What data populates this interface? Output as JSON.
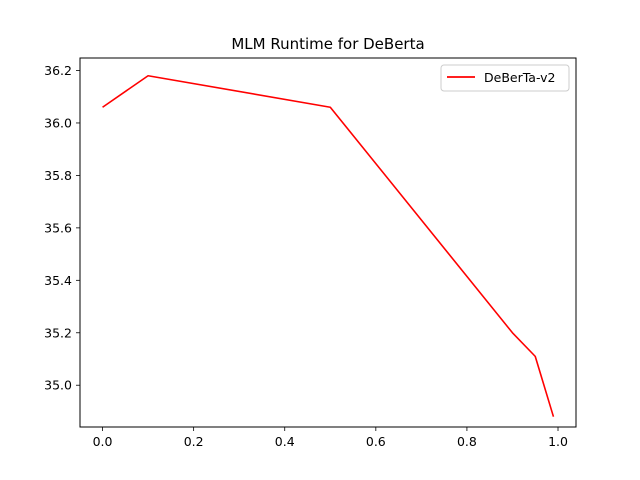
{
  "chart_data": {
    "type": "line",
    "title": "MLM Runtime for DeBerta",
    "xlabel": "",
    "ylabel": "",
    "xlim": [
      -0.0495,
      1.0395
    ],
    "ylim": [
      34.8407,
      36.2477
    ],
    "xticks": [
      0.0,
      0.2,
      0.4,
      0.6,
      0.8,
      1.0
    ],
    "xtick_labels": [
      "0.0",
      "0.2",
      "0.4",
      "0.6",
      "0.8",
      "1.0"
    ],
    "yticks": [
      35.0,
      35.2,
      35.4,
      35.6,
      35.8,
      36.0,
      36.2
    ],
    "ytick_labels": [
      "35.0",
      "35.2",
      "35.4",
      "35.6",
      "35.8",
      "36.0",
      "36.2"
    ],
    "grid": false,
    "legend_position": "top-right",
    "series": [
      {
        "name": "DeBerTa-v2",
        "color": "#ff0000",
        "x": [
          0.0,
          0.1,
          0.5,
          0.9,
          0.95,
          0.99
        ],
        "y": [
          36.06,
          36.18,
          36.06,
          35.2,
          35.11,
          34.88
        ]
      }
    ]
  }
}
